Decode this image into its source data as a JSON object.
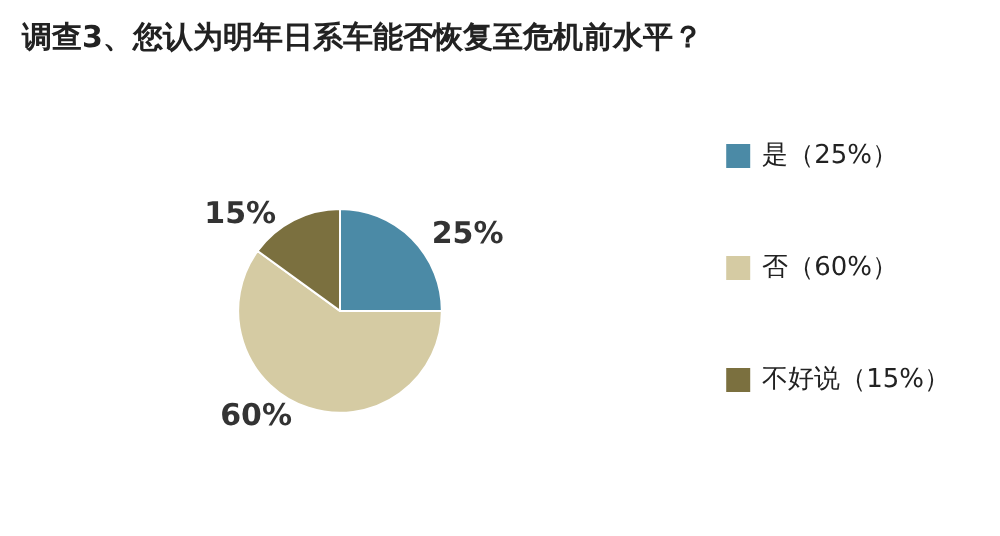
{
  "chart_data": {
    "type": "pie",
    "title": "调查3、您认为明年日系车能否恢复至危机前水平？",
    "categories": [
      "是（25%）",
      "否（60%）",
      "不好说（15%）"
    ],
    "values": [
      25,
      60,
      15
    ],
    "colors": [
      "#4b8aa6",
      "#d5cba3",
      "#7b703f"
    ],
    "value_labels": [
      "25%",
      "60%",
      "15%"
    ],
    "legend": "right"
  }
}
